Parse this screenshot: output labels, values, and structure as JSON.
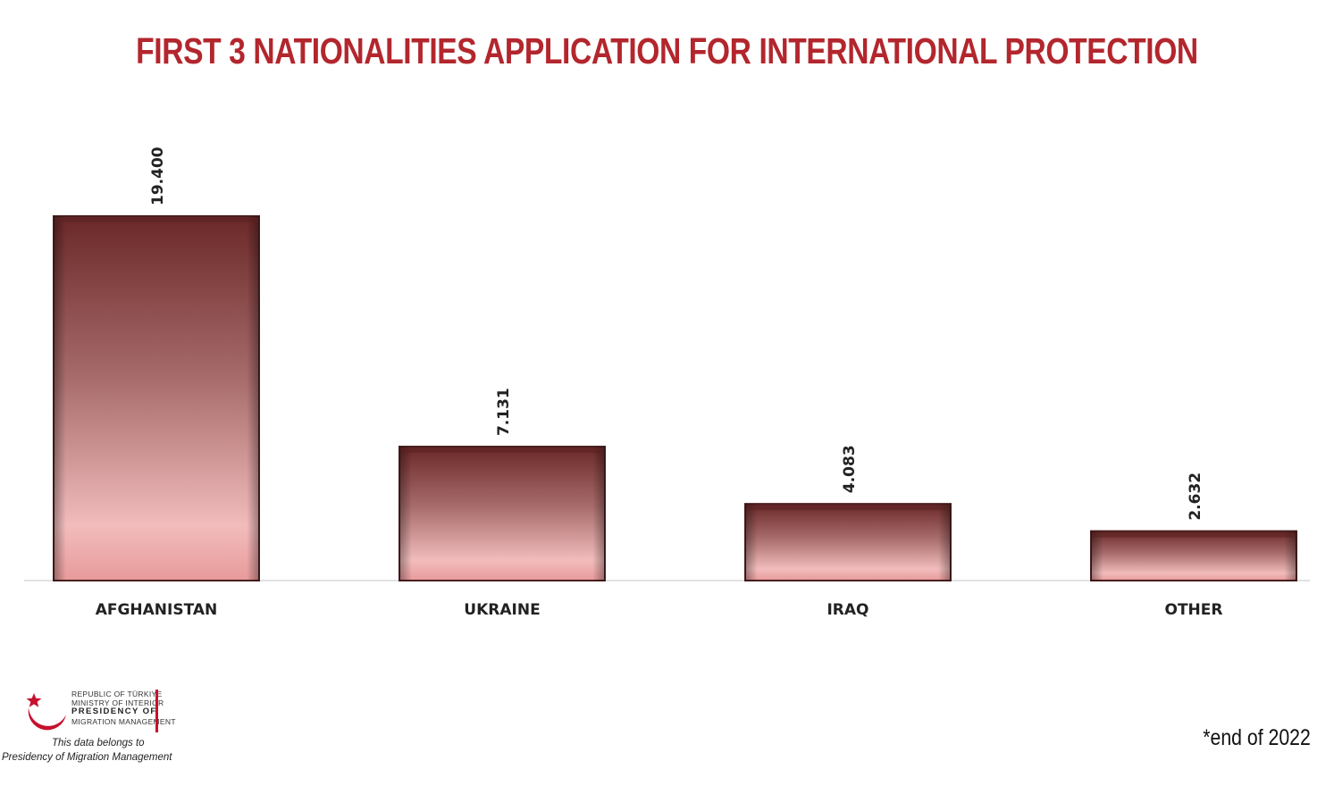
{
  "header": {
    "title": "FIRST 3 NATIONALITIES APPLICATION FOR INTERNATIONAL PROTECTION"
  },
  "chart_data": {
    "type": "bar",
    "title": "FIRST 3 NATIONALITIES APPLICATION FOR INTERNATIONAL PROTECTION",
    "categories": [
      "AFGHANISTAN",
      "UKRAINE",
      "IRAQ",
      "OTHER"
    ],
    "values": [
      19400,
      7131,
      4083,
      2632
    ],
    "value_labels": [
      "19.400",
      "7.131",
      "4.083",
      "2.632"
    ],
    "xlabel": "",
    "ylabel": "",
    "ylim": [
      0,
      19400
    ],
    "grid": false,
    "legend": "none",
    "colors": {
      "bar_top": "#6e2a2a",
      "bar_mid": "#b57878",
      "bar_bottom": "#f3bfbf",
      "bar_edge": "#4a1f1f",
      "title": "#b3262d"
    }
  },
  "logo": {
    "line1": "REPUBLIC OF TÜRKIYE",
    "line2": "MINISTRY OF INTERIOR",
    "line3": "PRESIDENCY OF",
    "line4": "MIGRATION MANAGEMENT",
    "icon": "crescent-star-icon"
  },
  "footer": {
    "belongs_line1": "This data belongs to",
    "belongs_line2": "Presidency of Migration Management",
    "note": "*end of 2022"
  }
}
